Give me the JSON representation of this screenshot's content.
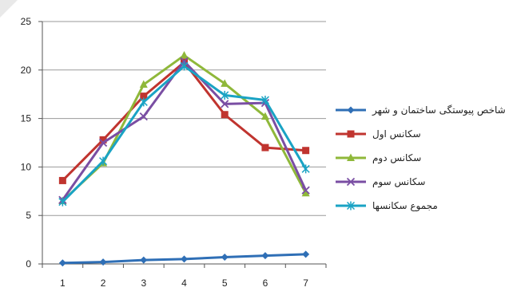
{
  "chart_data": {
    "type": "line",
    "x": [
      1,
      2,
      3,
      4,
      5,
      6,
      7
    ],
    "ylim": [
      0,
      25
    ],
    "yticks": [
      0,
      5,
      10,
      15,
      20,
      25
    ],
    "grid": "horizontal",
    "legend_position": "right",
    "series": [
      {
        "name": "شاخص پیوستگی ساختمان و شهر",
        "color": "#2f6fb6",
        "marker": "diamond",
        "values": [
          0.1,
          0.2,
          0.4,
          0.5,
          0.7,
          0.85,
          1.0
        ]
      },
      {
        "name": "سکانس اول",
        "color": "#c0342f",
        "marker": "square",
        "values": [
          8.6,
          12.8,
          17.3,
          20.8,
          15.4,
          12.0,
          11.7
        ]
      },
      {
        "name": "سکانس دوم",
        "color": "#8fb83a",
        "marker": "triangle",
        "values": [
          6.5,
          10.4,
          18.5,
          21.5,
          18.6,
          15.2,
          7.3
        ]
      },
      {
        "name": "سکانس سوم",
        "color": "#7a4ea3",
        "marker": "x",
        "values": [
          6.6,
          12.5,
          15.2,
          20.9,
          16.5,
          16.6,
          7.6
        ]
      },
      {
        "name": "مجموع سکانسها",
        "color": "#1aa3c4",
        "marker": "star",
        "values": [
          6.4,
          10.6,
          16.7,
          20.4,
          17.4,
          16.9,
          9.8
        ]
      }
    ]
  }
}
